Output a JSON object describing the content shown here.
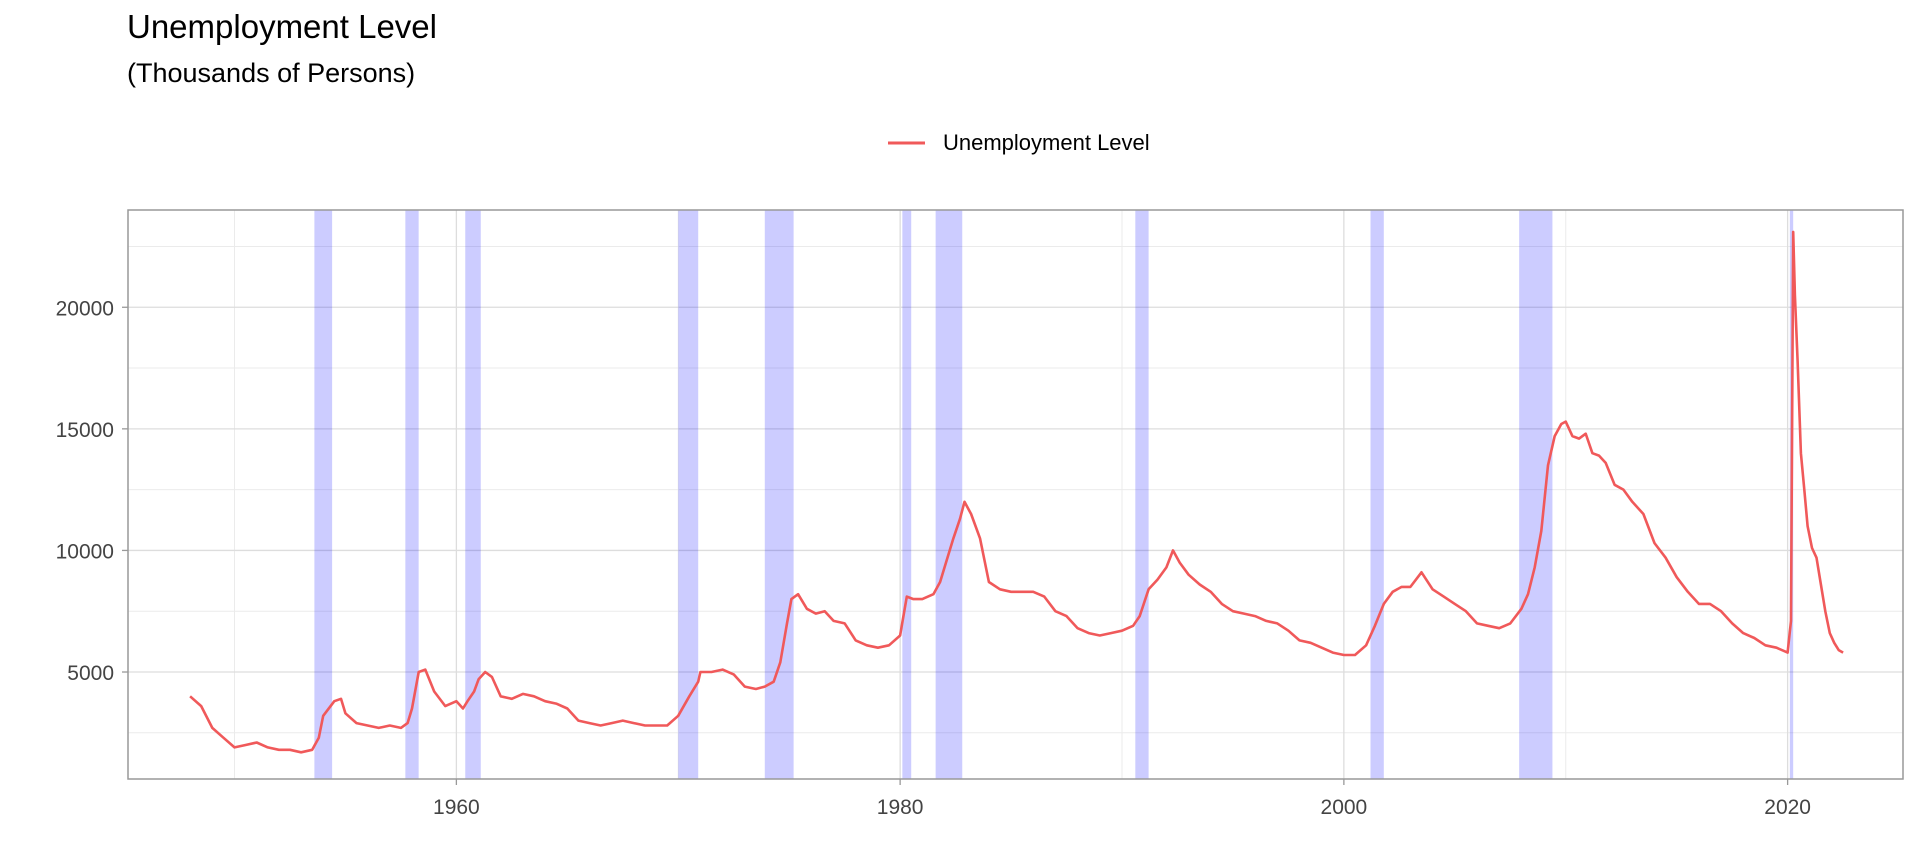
{
  "chart_data": {
    "type": "line",
    "title": "Unemployment Level",
    "subtitle": "(Thousands of Persons)",
    "xlabel": "",
    "ylabel": "",
    "xlim": [
      1945.2,
      2025.2
    ],
    "ylim": [
      600,
      24000
    ],
    "x_ticks": [
      1960,
      1980,
      2000,
      2020
    ],
    "y_ticks": [
      5000,
      10000,
      15000,
      20000
    ],
    "grid": true,
    "legend": {
      "placement": "top-center",
      "entries": [
        "Unemployment Level"
      ]
    },
    "colors": {
      "series": "#F0595A",
      "recession": "#0000FF",
      "grid": "#DDDDDD",
      "frame": "#999999"
    },
    "recession_bands": [
      [
        1953.6,
        1954.4
      ],
      [
        1957.7,
        1958.3
      ],
      [
        1960.4,
        1961.1
      ],
      [
        1970.0,
        1970.9
      ],
      [
        1973.9,
        1975.2
      ],
      [
        1980.1,
        1980.5
      ],
      [
        1981.6,
        1982.8
      ],
      [
        1990.6,
        1991.2
      ],
      [
        2001.2,
        2001.8
      ],
      [
        2007.9,
        2009.4
      ],
      [
        2020.1,
        2020.25
      ]
    ],
    "series": [
      {
        "name": "Unemployment Level",
        "x": [
          1948.0,
          1948.5,
          1949.0,
          1949.5,
          1950.0,
          1950.5,
          1951.0,
          1951.5,
          1952.0,
          1952.5,
          1953.0,
          1953.5,
          1953.8,
          1954.0,
          1954.5,
          1954.8,
          1955.0,
          1955.5,
          1956.0,
          1956.5,
          1957.0,
          1957.5,
          1957.8,
          1958.0,
          1958.3,
          1958.6,
          1959.0,
          1959.5,
          1960.0,
          1960.3,
          1960.5,
          1960.8,
          1961.0,
          1961.3,
          1961.6,
          1962.0,
          1962.5,
          1963.0,
          1963.5,
          1964.0,
          1964.5,
          1965.0,
          1965.5,
          1966.0,
          1966.5,
          1967.0,
          1967.5,
          1968.0,
          1968.5,
          1969.0,
          1969.5,
          1970.0,
          1970.5,
          1970.9,
          1971.0,
          1971.5,
          1972.0,
          1972.5,
          1973.0,
          1973.5,
          1973.9,
          1974.3,
          1974.6,
          1974.9,
          1975.1,
          1975.4,
          1975.8,
          1976.2,
          1976.6,
          1977.0,
          1977.5,
          1978.0,
          1978.5,
          1979.0,
          1979.5,
          1980.0,
          1980.3,
          1980.6,
          1981.0,
          1981.5,
          1981.8,
          1982.1,
          1982.4,
          1982.7,
          1982.9,
          1983.2,
          1983.6,
          1984.0,
          1984.5,
          1985.0,
          1985.5,
          1986.0,
          1986.5,
          1987.0,
          1987.5,
          1988.0,
          1988.5,
          1989.0,
          1989.5,
          1990.0,
          1990.5,
          1990.8,
          1991.2,
          1991.6,
          1992.0,
          1992.3,
          1992.6,
          1993.0,
          1993.5,
          1994.0,
          1994.5,
          1995.0,
          1995.5,
          1996.0,
          1996.5,
          1997.0,
          1997.5,
          1998.0,
          1998.5,
          1999.0,
          1999.5,
          2000.0,
          2000.5,
          2001.0,
          2001.4,
          2001.8,
          2002.2,
          2002.6,
          2003.0,
          2003.5,
          2004.0,
          2004.5,
          2005.0,
          2005.5,
          2006.0,
          2006.5,
          2007.0,
          2007.5,
          2008.0,
          2008.3,
          2008.6,
          2008.9,
          2009.2,
          2009.5,
          2009.8,
          2010.0,
          2010.3,
          2010.6,
          2010.9,
          2011.2,
          2011.5,
          2011.8,
          2012.2,
          2012.6,
          2013.0,
          2013.5,
          2014.0,
          2014.5,
          2015.0,
          2015.5,
          2016.0,
          2016.5,
          2017.0,
          2017.5,
          2018.0,
          2018.5,
          2019.0,
          2019.5,
          2020.0,
          2020.15,
          2020.25,
          2020.33,
          2020.45,
          2020.6,
          2020.75,
          2020.9,
          2021.1,
          2021.3,
          2021.5,
          2021.7,
          2021.9,
          2022.1,
          2022.3,
          2022.5
        ],
        "y": [
          4000,
          3600,
          2700,
          2300,
          1900,
          2000,
          2100,
          1900,
          1800,
          1800,
          1700,
          1800,
          2300,
          3200,
          3800,
          3900,
          3300,
          2900,
          2800,
          2700,
          2800,
          2700,
          2900,
          3500,
          5000,
          5100,
          4200,
          3600,
          3800,
          3500,
          3800,
          4200,
          4700,
          5000,
          4800,
          4000,
          3900,
          4100,
          4000,
          3800,
          3700,
          3500,
          3000,
          2900,
          2800,
          2900,
          3000,
          2900,
          2800,
          2800,
          2800,
          3200,
          4000,
          4600,
          5000,
          5000,
          5100,
          4900,
          4400,
          4300,
          4400,
          4600,
          5400,
          7000,
          8000,
          8200,
          7600,
          7400,
          7500,
          7100,
          7000,
          6300,
          6100,
          6000,
          6100,
          6500,
          8100,
          8000,
          8000,
          8200,
          8700,
          9600,
          10500,
          11300,
          12000,
          11500,
          10500,
          8700,
          8400,
          8300,
          8300,
          8300,
          8100,
          7500,
          7300,
          6800,
          6600,
          6500,
          6600,
          6700,
          6900,
          7300,
          8400,
          8800,
          9300,
          10000,
          9500,
          9000,
          8600,
          8300,
          7800,
          7500,
          7400,
          7300,
          7100,
          7000,
          6700,
          6300,
          6200,
          6000,
          5800,
          5700,
          5700,
          6100,
          6900,
          7800,
          8300,
          8500,
          8500,
          9100,
          8400,
          8100,
          7800,
          7500,
          7000,
          6900,
          6800,
          7000,
          7600,
          8200,
          9300,
          10800,
          13500,
          14700,
          15200,
          15300,
          14700,
          14600,
          14800,
          14000,
          13900,
          13600,
          12700,
          12500,
          12000,
          11500,
          10300,
          9700,
          8900,
          8300,
          7800,
          7800,
          7500,
          7000,
          6600,
          6400,
          6100,
          6000,
          5800,
          7100,
          23100,
          20500,
          17800,
          14000,
          12500,
          11000,
          10100,
          9700,
          8600,
          7500,
          6600,
          6200,
          5900,
          5800
        ]
      }
    ]
  }
}
